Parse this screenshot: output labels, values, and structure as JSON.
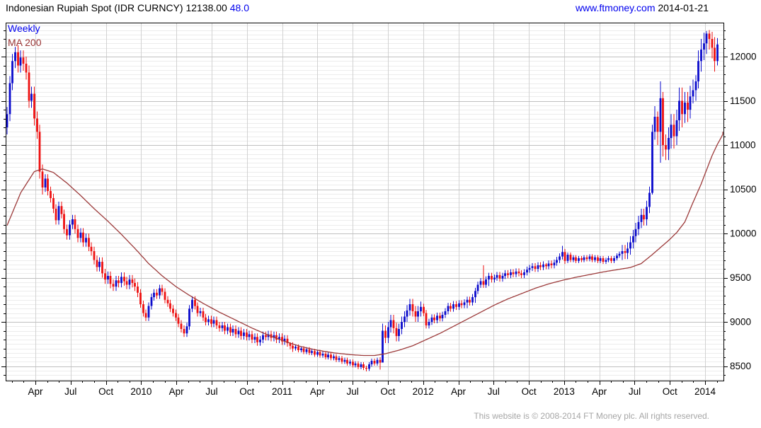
{
  "header": {
    "title": "Indonesian Rupiah Spot (IDR CURNCY) 12138.00",
    "change": "48.0",
    "site": "www.ftmoney.com",
    "date": "2014-01-21"
  },
  "legend": {
    "series": "Weekly",
    "overlay": "MA 200"
  },
  "footer": {
    "copyright": "This website is © 2008-2014 FT Money plc. All rights reserved."
  },
  "colors": {
    "up": "#0b0bcc",
    "down": "#ee1111",
    "ma": "#9c3a3a",
    "link_blue": "#0000ee",
    "title_text": "#000000",
    "grid_minor": "#ececec",
    "grid_major": "#c0c0c0",
    "grid_vertical": "#d2d2d2",
    "axis": "#000000",
    "footer_text": "#a6a6a6",
    "background": "#ffffff"
  },
  "chart_data": {
    "type": "candlestick",
    "title": "Indonesian Rupiah Spot (IDR CURNCY)",
    "interval": "Weekly",
    "overlay": "MA 200",
    "last_close": 12138.0,
    "change": 48.0,
    "first_open": 11200,
    "open_rule": "open equals previous close",
    "y_axis": {
      "ticks": [
        8500,
        9000,
        9500,
        10000,
        10500,
        11000,
        11500,
        12000
      ],
      "minor_grid_step": 50,
      "minor_tick_step": 100,
      "top_value": 12384,
      "bottom_value": 8336
    },
    "x_axis": {
      "labels": [
        "Apr",
        "Jul",
        "Oct",
        "2010",
        "Apr",
        "Jul",
        "Oct",
        "2011",
        "Apr",
        "Jul",
        "Oct",
        "2012",
        "Apr",
        "Jul",
        "Oct",
        "2013",
        "Apr",
        "Jul",
        "Oct",
        "2014"
      ],
      "first_label_week": 10.4,
      "weeks_per_label": 12.95,
      "months_per_label": 3,
      "month_ticks": true
    },
    "candles_hlc": [
      [
        11430,
        11120,
        11350
      ],
      [
        11780,
        11270,
        11700
      ],
      [
        12030,
        11620,
        11950
      ],
      [
        12110,
        11870,
        12050
      ],
      [
        12130,
        11820,
        11900
      ],
      [
        12070,
        11820,
        11990
      ],
      [
        12070,
        11840,
        11920
      ],
      [
        12000,
        11740,
        11820
      ],
      [
        11900,
        11420,
        11500
      ],
      [
        11660,
        11420,
        11580
      ],
      [
        11660,
        11220,
        11300
      ],
      [
        11380,
        11070,
        11150
      ],
      [
        11230,
        10620,
        10700
      ],
      [
        10780,
        10440,
        10520
      ],
      [
        10670,
        10470,
        10620
      ],
      [
        10670,
        10430,
        10480
      ],
      [
        10530,
        10350,
        10400
      ],
      [
        10450,
        10230,
        10280
      ],
      [
        10330,
        10100,
        10150
      ],
      [
        10360,
        10100,
        10310
      ],
      [
        10360,
        10170,
        10220
      ],
      [
        10270,
        10000,
        10050
      ],
      [
        10100,
        9930,
        9980
      ],
      [
        10150,
        9930,
        10100
      ],
      [
        10210,
        10050,
        10160
      ],
      [
        10210,
        10000,
        10050
      ],
      [
        10100,
        9900,
        9950
      ],
      [
        10060,
        9900,
        10010
      ],
      [
        10060,
        9850,
        9900
      ],
      [
        10000,
        9850,
        9950
      ],
      [
        10000,
        9800,
        9850
      ],
      [
        9900,
        9750,
        9800
      ],
      [
        9850,
        9650,
        9700
      ],
      [
        9750,
        9570,
        9620
      ],
      [
        9730,
        9570,
        9680
      ],
      [
        9730,
        9500,
        9550
      ],
      [
        9600,
        9430,
        9480
      ],
      [
        9570,
        9430,
        9520
      ],
      [
        9570,
        9380,
        9430
      ],
      [
        9480,
        9350,
        9400
      ],
      [
        9520,
        9350,
        9470
      ],
      [
        9520,
        9390,
        9440
      ],
      [
        9560,
        9390,
        9510
      ],
      [
        9560,
        9410,
        9460
      ],
      [
        9510,
        9370,
        9420
      ],
      [
        9530,
        9370,
        9480
      ],
      [
        9530,
        9390,
        9440
      ],
      [
        9490,
        9350,
        9400
      ],
      [
        9450,
        9280,
        9330
      ],
      [
        9370,
        9160,
        9200
      ],
      [
        9240,
        9060,
        9100
      ],
      [
        9140,
        9010,
        9050
      ],
      [
        9220,
        9010,
        9180
      ],
      [
        9320,
        9140,
        9280
      ],
      [
        9370,
        9240,
        9330
      ],
      [
        9370,
        9260,
        9300
      ],
      [
        9420,
        9260,
        9380
      ],
      [
        9420,
        9300,
        9340
      ],
      [
        9380,
        9210,
        9250
      ],
      [
        9290,
        9170,
        9210
      ],
      [
        9250,
        9110,
        9150
      ],
      [
        9190,
        9060,
        9100
      ],
      [
        9140,
        9010,
        9050
      ],
      [
        9090,
        8940,
        8980
      ],
      [
        9020,
        8880,
        8920
      ],
      [
        8960,
        8830,
        8870
      ],
      [
        8990,
        8830,
        8950
      ],
      [
        9190,
        8910,
        9150
      ],
      [
        9290,
        9110,
        9250
      ],
      [
        9290,
        9140,
        9180
      ],
      [
        9220,
        9060,
        9100
      ],
      [
        9160,
        9060,
        9120
      ],
      [
        9160,
        9010,
        9050
      ],
      [
        9090,
        8960,
        9000
      ],
      [
        9070,
        8960,
        9030
      ],
      [
        9070,
        8940,
        8980
      ],
      [
        9060,
        8940,
        9020
      ],
      [
        9060,
        8920,
        8960
      ],
      [
        9000,
        8890,
        8930
      ],
      [
        9000,
        8890,
        8960
      ],
      [
        9000,
        8860,
        8900
      ],
      [
        8980,
        8860,
        8940
      ],
      [
        8980,
        8840,
        8880
      ],
      [
        8960,
        8840,
        8920
      ],
      [
        8960,
        8820,
        8860
      ],
      [
        8940,
        8820,
        8900
      ],
      [
        8940,
        8800,
        8840
      ],
      [
        8920,
        8800,
        8880
      ],
      [
        8920,
        8790,
        8830
      ],
      [
        8900,
        8790,
        8860
      ],
      [
        8900,
        8760,
        8800
      ],
      [
        8870,
        8760,
        8830
      ],
      [
        8870,
        8730,
        8770
      ],
      [
        8840,
        8730,
        8800
      ],
      [
        8890,
        8760,
        8850
      ],
      [
        8890,
        8790,
        8830
      ],
      [
        8900,
        8790,
        8860
      ],
      [
        8900,
        8780,
        8820
      ],
      [
        8890,
        8780,
        8850
      ],
      [
        8890,
        8760,
        8800
      ],
      [
        8870,
        8760,
        8830
      ],
      [
        8870,
        8740,
        8780
      ],
      [
        8850,
        8740,
        8810
      ],
      [
        8850,
        8720,
        8760
      ],
      [
        8770,
        8690,
        8730
      ],
      [
        8770,
        8660,
        8700
      ],
      [
        8745,
        8675,
        8720
      ],
      [
        8745,
        8655,
        8680
      ],
      [
        8725,
        8655,
        8700
      ],
      [
        8725,
        8635,
        8660
      ],
      [
        8715,
        8635,
        8690
      ],
      [
        8715,
        8625,
        8650
      ],
      [
        8695,
        8625,
        8670
      ],
      [
        8695,
        8605,
        8630
      ],
      [
        8685,
        8605,
        8660
      ],
      [
        8685,
        8595,
        8620
      ],
      [
        8665,
        8595,
        8640
      ],
      [
        8665,
        8575,
        8600
      ],
      [
        8655,
        8575,
        8630
      ],
      [
        8655,
        8565,
        8590
      ],
      [
        8635,
        8565,
        8610
      ],
      [
        8635,
        8545,
        8570
      ],
      [
        8615,
        8545,
        8590
      ],
      [
        8615,
        8525,
        8550
      ],
      [
        8595,
        8525,
        8570
      ],
      [
        8595,
        8505,
        8530
      ],
      [
        8575,
        8505,
        8550
      ],
      [
        8575,
        8485,
        8510
      ],
      [
        8555,
        8485,
        8530
      ],
      [
        8555,
        8465,
        8490
      ],
      [
        8545,
        8465,
        8520
      ],
      [
        8545,
        8455,
        8480
      ],
      [
        8505,
        8440,
        8470
      ],
      [
        8545,
        8445,
        8520
      ],
      [
        8585,
        8495,
        8560
      ],
      [
        8585,
        8505,
        8530
      ],
      [
        8595,
        8505,
        8570
      ],
      [
        8600,
        8460,
        8540
      ],
      [
        8980,
        8610,
        8900
      ],
      [
        8960,
        8760,
        8820
      ],
      [
        9000,
        8760,
        8940
      ],
      [
        9080,
        8880,
        9020
      ],
      [
        9080,
        8870,
        8930
      ],
      [
        8990,
        8780,
        8840
      ],
      [
        8980,
        8780,
        8920
      ],
      [
        9060,
        8860,
        9000
      ],
      [
        9120,
        8940,
        9060
      ],
      [
        9190,
        9000,
        9130
      ],
      [
        9260,
        9070,
        9200
      ],
      [
        9260,
        9060,
        9120
      ],
      [
        9180,
        9000,
        9060
      ],
      [
        9180,
        9000,
        9120
      ],
      [
        9230,
        9060,
        9170
      ],
      [
        9205,
        9065,
        9100
      ],
      [
        9135,
        8925,
        8960
      ],
      [
        9035,
        8925,
        9000
      ],
      [
        9085,
        8965,
        9050
      ],
      [
        9085,
        8985,
        9020
      ],
      [
        9105,
        8985,
        9070
      ],
      [
        9105,
        9005,
        9040
      ],
      [
        9115,
        9005,
        9080
      ],
      [
        9155,
        9045,
        9120
      ],
      [
        9215,
        9085,
        9180
      ],
      [
        9215,
        9115,
        9150
      ],
      [
        9235,
        9115,
        9200
      ],
      [
        9235,
        9135,
        9170
      ],
      [
        9245,
        9135,
        9210
      ],
      [
        9245,
        9155,
        9190
      ],
      [
        9255,
        9155,
        9220
      ],
      [
        9285,
        9155,
        9250
      ],
      [
        9285,
        9185,
        9220
      ],
      [
        9315,
        9185,
        9280
      ],
      [
        9385,
        9215,
        9350
      ],
      [
        9455,
        9315,
        9420
      ],
      [
        9495,
        9385,
        9460
      ],
      [
        9640,
        9385,
        9420
      ],
      [
        9515,
        9385,
        9480
      ],
      [
        9555,
        9405,
        9520
      ],
      [
        9555,
        9445,
        9480
      ],
      [
        9535,
        9445,
        9500
      ],
      [
        9565,
        9465,
        9530
      ],
      [
        9565,
        9455,
        9490
      ],
      [
        9555,
        9455,
        9520
      ],
      [
        9585,
        9485,
        9550
      ],
      [
        9585,
        9495,
        9530
      ],
      [
        9595,
        9495,
        9560
      ],
      [
        9595,
        9505,
        9540
      ],
      [
        9605,
        9505,
        9570
      ],
      [
        9605,
        9515,
        9550
      ],
      [
        9585,
        9495,
        9530
      ],
      [
        9595,
        9495,
        9560
      ],
      [
        9625,
        9525,
        9590
      ],
      [
        9645,
        9555,
        9610
      ],
      [
        9665,
        9575,
        9630
      ],
      [
        9665,
        9565,
        9600
      ],
      [
        9675,
        9565,
        9640
      ],
      [
        9675,
        9585,
        9620
      ],
      [
        9685,
        9585,
        9650
      ],
      [
        9665,
        9595,
        9630
      ],
      [
        9695,
        9595,
        9660
      ],
      [
        9695,
        9605,
        9640
      ],
      [
        9705,
        9605,
        9670
      ],
      [
        9735,
        9635,
        9700
      ],
      [
        9775,
        9665,
        9740
      ],
      [
        9860,
        9705,
        9790
      ],
      [
        9825,
        9655,
        9690
      ],
      [
        9785,
        9665,
        9760
      ],
      [
        9785,
        9675,
        9700
      ],
      [
        9755,
        9675,
        9730
      ],
      [
        9755,
        9665,
        9690
      ],
      [
        9745,
        9665,
        9720
      ],
      [
        9745,
        9675,
        9700
      ],
      [
        9755,
        9675,
        9730
      ],
      [
        9755,
        9685,
        9710
      ],
      [
        9765,
        9685,
        9740
      ],
      [
        9765,
        9675,
        9700
      ],
      [
        9755,
        9675,
        9730
      ],
      [
        9755,
        9665,
        9690
      ],
      [
        9745,
        9665,
        9720
      ],
      [
        9745,
        9655,
        9680
      ],
      [
        9725,
        9655,
        9700
      ],
      [
        9745,
        9675,
        9720
      ],
      [
        9745,
        9665,
        9690
      ],
      [
        9745,
        9665,
        9720
      ],
      [
        9775,
        9695,
        9750
      ],
      [
        9795,
        9725,
        9770
      ],
      [
        9870,
        9700,
        9800
      ],
      [
        9870,
        9710,
        9780
      ],
      [
        9900,
        9710,
        9830
      ],
      [
        9970,
        9760,
        9900
      ],
      [
        10040,
        9830,
        9970
      ],
      [
        10120,
        9900,
        10050
      ],
      [
        10200,
        9980,
        10130
      ],
      [
        10280,
        10060,
        10210
      ],
      [
        10280,
        10090,
        10160
      ],
      [
        10370,
        10090,
        10300
      ],
      [
        10530,
        10230,
        10460
      ],
      [
        11230,
        10440,
        11150
      ],
      [
        11440,
        11060,
        11320
      ],
      [
        11380,
        11000,
        11150
      ],
      [
        11720,
        10800,
        11530
      ],
      [
        11600,
        10870,
        11000
      ],
      [
        11120,
        10830,
        10950
      ],
      [
        11200,
        10830,
        11080
      ],
      [
        11350,
        10960,
        11230
      ],
      [
        11350,
        10960,
        11100
      ],
      [
        11400,
        11000,
        11280
      ],
      [
        11650,
        11160,
        11500
      ],
      [
        11650,
        11200,
        11350
      ],
      [
        11600,
        11250,
        11480
      ],
      [
        11600,
        11260,
        11400
      ],
      [
        11670,
        11300,
        11550
      ],
      [
        11740,
        11470,
        11620
      ],
      [
        11790,
        11500,
        11720
      ],
      [
        12070,
        11640,
        11950
      ],
      [
        12200,
        11830,
        12080
      ],
      [
        12270,
        11960,
        12150
      ],
      [
        12290,
        12030,
        12260
      ],
      [
        12300,
        12080,
        12200
      ],
      [
        12280,
        11980,
        12100
      ],
      [
        12220,
        11830,
        11950
      ],
      [
        12210,
        11900,
        12138
      ]
    ],
    "ma200_anchors": [
      [
        0,
        10090
      ],
      [
        5,
        10460
      ],
      [
        10,
        10700
      ],
      [
        13,
        10730
      ],
      [
        17,
        10690
      ],
      [
        22,
        10570
      ],
      [
        27,
        10430
      ],
      [
        32,
        10280
      ],
      [
        37,
        10140
      ],
      [
        42,
        9990
      ],
      [
        47,
        9830
      ],
      [
        52,
        9660
      ],
      [
        57,
        9520
      ],
      [
        62,
        9400
      ],
      [
        67,
        9300
      ],
      [
        72,
        9210
      ],
      [
        78,
        9110
      ],
      [
        84,
        9020
      ],
      [
        90,
        8930
      ],
      [
        96,
        8850
      ],
      [
        102,
        8780
      ],
      [
        108,
        8720
      ],
      [
        114,
        8680
      ],
      [
        120,
        8650
      ],
      [
        126,
        8630
      ],
      [
        131,
        8620
      ],
      [
        135,
        8620
      ],
      [
        139,
        8640
      ],
      [
        144,
        8680
      ],
      [
        149,
        8730
      ],
      [
        154,
        8800
      ],
      [
        159,
        8870
      ],
      [
        164,
        8950
      ],
      [
        169,
        9030
      ],
      [
        174,
        9110
      ],
      [
        179,
        9190
      ],
      [
        184,
        9260
      ],
      [
        189,
        9320
      ],
      [
        194,
        9380
      ],
      [
        199,
        9430
      ],
      [
        204,
        9470
      ],
      [
        209,
        9505
      ],
      [
        214,
        9535
      ],
      [
        219,
        9565
      ],
      [
        224,
        9590
      ],
      [
        229,
        9615
      ],
      [
        233,
        9660
      ],
      [
        237,
        9760
      ],
      [
        240,
        9840
      ],
      [
        243,
        9920
      ],
      [
        246,
        10010
      ],
      [
        249,
        10130
      ],
      [
        252,
        10350
      ],
      [
        255,
        10560
      ],
      [
        257,
        10720
      ],
      [
        259,
        10880
      ],
      [
        261,
        11010
      ],
      [
        263.5,
        11150
      ]
    ]
  }
}
